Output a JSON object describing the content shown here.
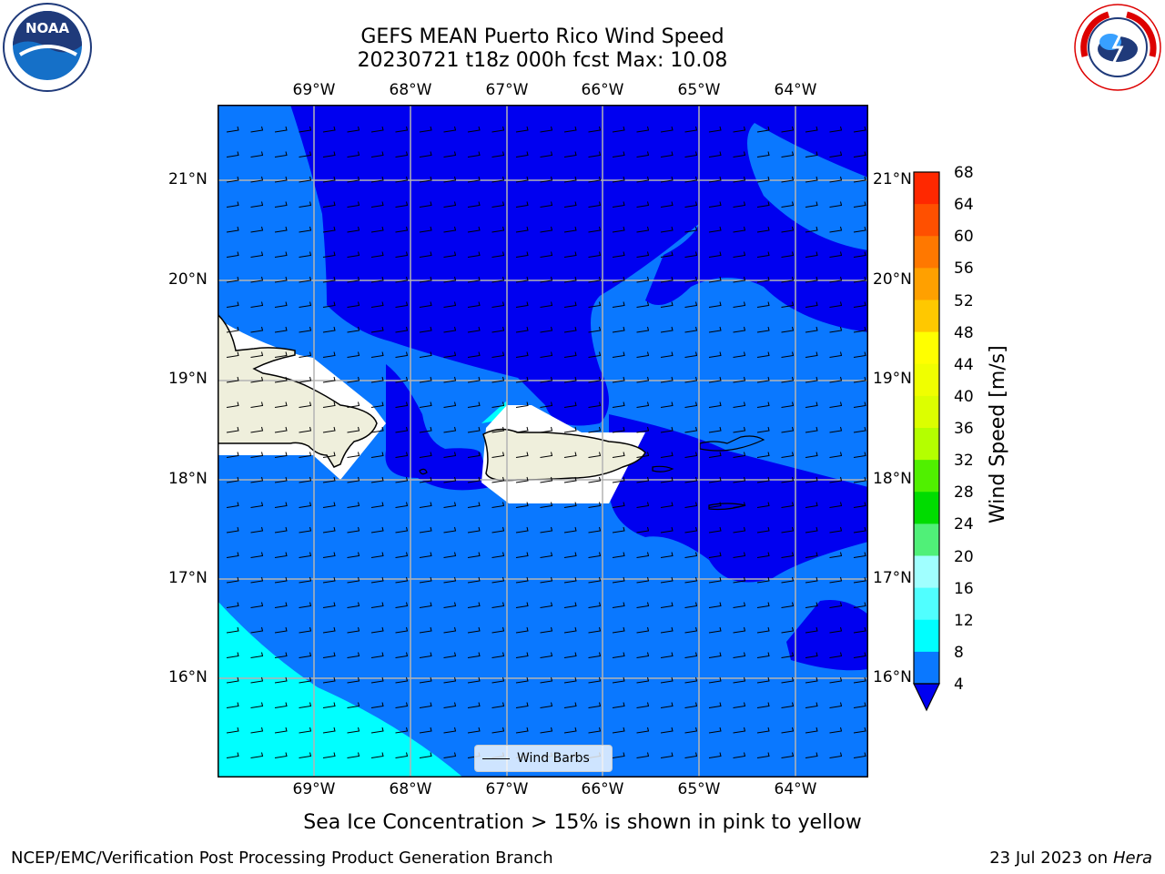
{
  "header": {
    "title_line1": "GEFS MEAN Puerto Rico Wind Speed",
    "title_line2": "20230721 t18z 000h fcst   Max: 10.08"
  },
  "logos": {
    "left": "NOAA",
    "right": "NATIONAL WEATHER SERVICE"
  },
  "map": {
    "lon_labels": [
      "69°W",
      "68°W",
      "67°W",
      "66°W",
      "65°W",
      "64°W"
    ],
    "lat_labels": [
      "21°N",
      "20°N",
      "19°N",
      "18°N",
      "17°N",
      "16°N"
    ],
    "colors": {
      "dark_blue": "#0000f0",
      "mid_blue": "#0a78ff",
      "cyan": "#00ffff",
      "land": "#efefdc"
    },
    "legend_label": "Wind Barbs",
    "note": "Sea Ice Concentration > 15% is shown in pink to yellow"
  },
  "colorbar": {
    "title": "Wind Speed [m/s]",
    "ticks": [
      "68",
      "64",
      "60",
      "56",
      "52",
      "48",
      "44",
      "40",
      "36",
      "32",
      "28",
      "24",
      "20",
      "16",
      "12",
      "8",
      "4"
    ],
    "colors": [
      "#ff0000",
      "#ff2800",
      "#ff5000",
      "#ff7800",
      "#ffa000",
      "#ffc800",
      "#ffff00",
      "#f0ff00",
      "#dcff00",
      "#b4ff00",
      "#50f000",
      "#00dc00",
      "#50f078",
      "#a0ffff",
      "#50ffff",
      "#00ffff",
      "#0a78ff",
      "#0000f0"
    ]
  },
  "footer": {
    "left": "NCEP/EMC/Verification Post Processing Product Generation Branch",
    "right_date": "23 Jul 2023 on",
    "right_host": "Hera"
  }
}
